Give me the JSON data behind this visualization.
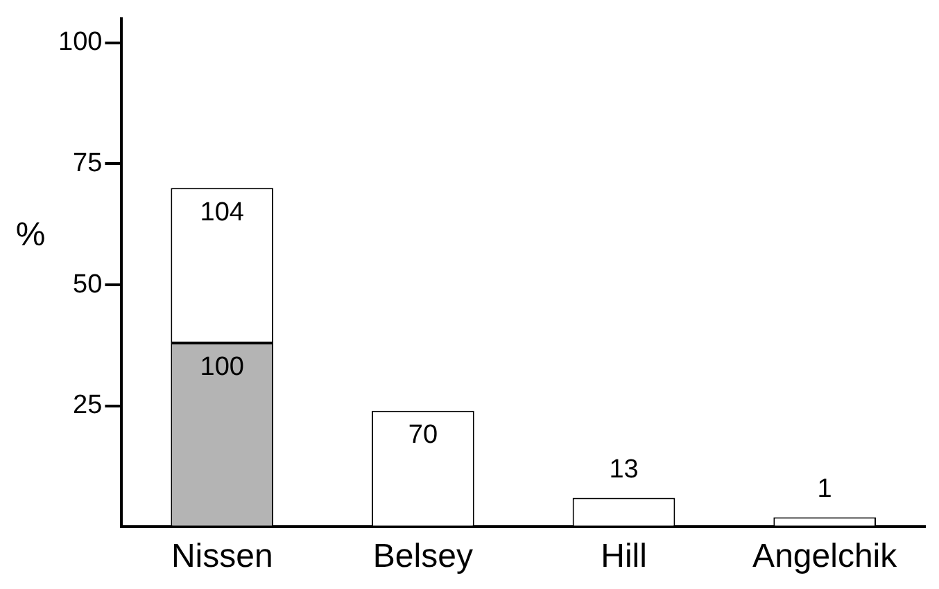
{
  "chart_data": {
    "type": "bar",
    "stacked": true,
    "categories": [
      "Nissen",
      "Belsey",
      "Hill",
      "Angelchik"
    ],
    "ylabel": "%",
    "ylim": [
      0,
      105
    ],
    "yticks": [
      25,
      50,
      75,
      100
    ],
    "grid": false,
    "legend": false,
    "series": [
      {
        "color": "#b4b4b4",
        "values": [
          38,
          null,
          null,
          null
        ]
      },
      {
        "color": "#ffffff",
        "values": [
          32,
          24,
          6,
          2
        ]
      }
    ],
    "annotations": [
      {
        "text": "100",
        "x": "Nissen",
        "y": 38
      },
      {
        "text": "104",
        "x": "Nissen",
        "y": 70
      },
      {
        "text": "70",
        "x": "Belsey",
        "y": 24
      },
      {
        "text": "13",
        "x": "Hill",
        "y": 6
      },
      {
        "text": "1",
        "x": "Angelchik",
        "y": 2
      }
    ]
  }
}
